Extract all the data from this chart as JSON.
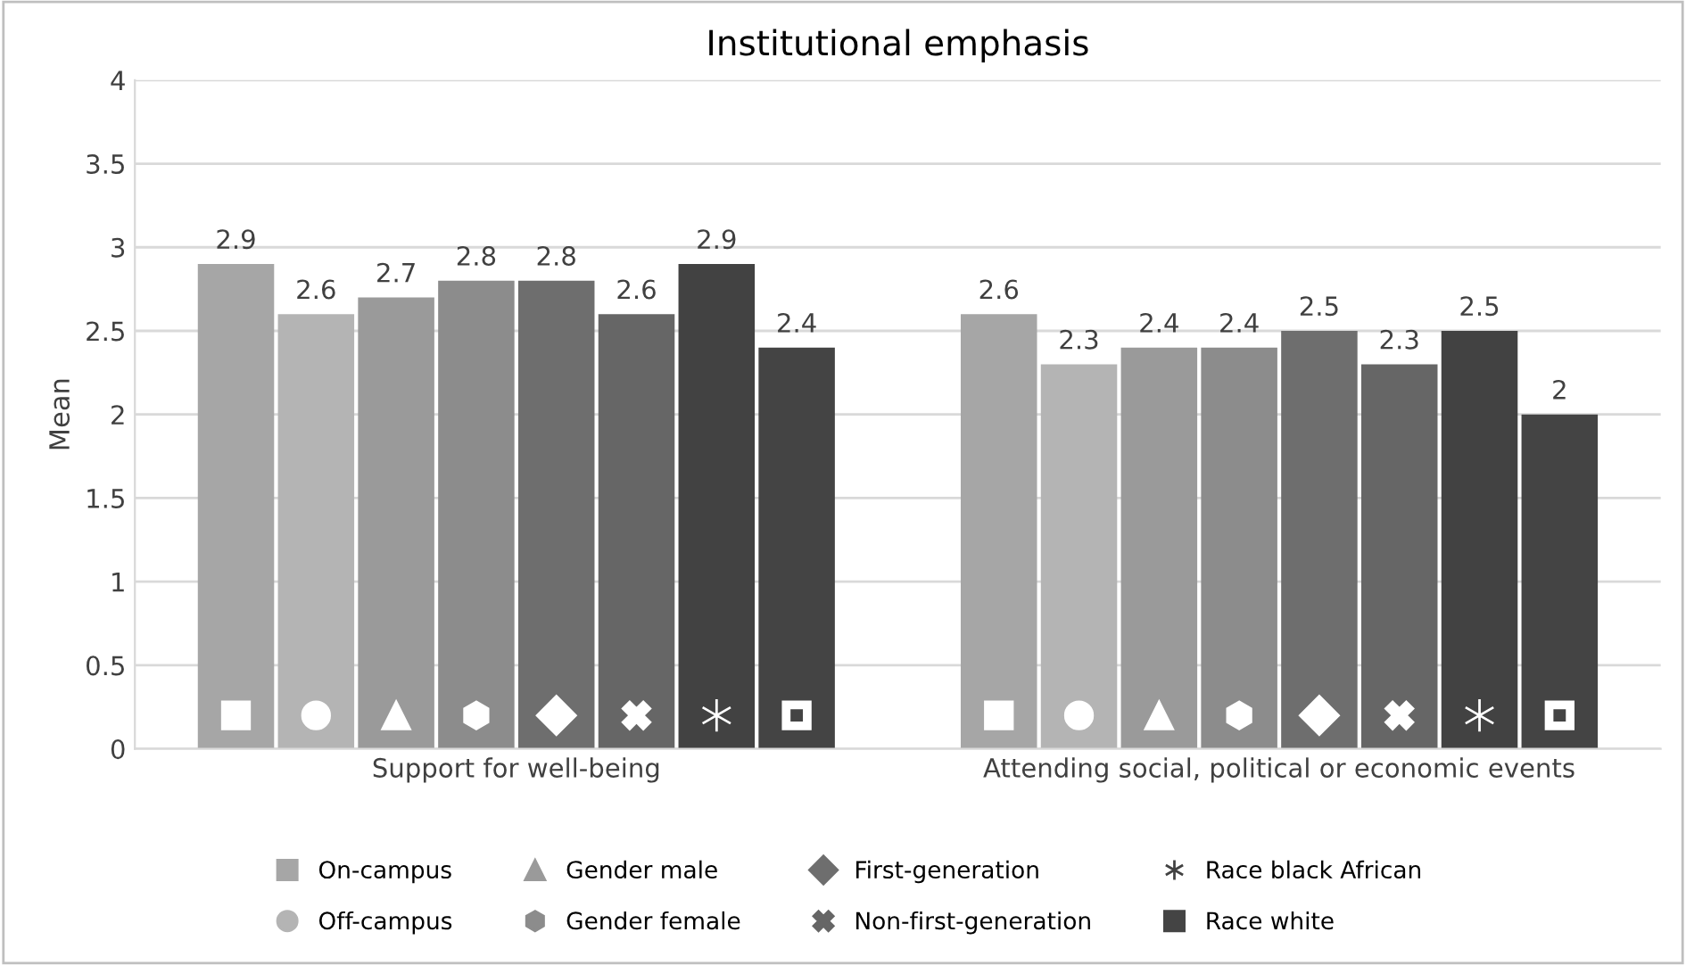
{
  "chart_data": {
    "type": "bar",
    "title": "Institutional emphasis",
    "ylabel": "Mean",
    "categories": [
      "Support for well-being",
      "Attending social, political or economic events"
    ],
    "series": [
      {
        "name": "On-campus",
        "color": "#a6a6a6",
        "values": [
          2.9,
          2.6
        ]
      },
      {
        "name": "Off-campus",
        "color": "#b4b4b4",
        "values": [
          2.6,
          2.3
        ]
      },
      {
        "name": "Gender male",
        "color": "#9a9a9a",
        "values": [
          2.7,
          2.4
        ]
      },
      {
        "name": "Gender female",
        "color": "#8c8c8c",
        "values": [
          2.8,
          2.4
        ]
      },
      {
        "name": "First-generation",
        "color": "#6e6e6e",
        "values": [
          2.8,
          2.5
        ]
      },
      {
        "name": "Non-first-generation",
        "color": "#666666",
        "values": [
          2.6,
          2.3
        ]
      },
      {
        "name": "Race black African",
        "color": "#424242",
        "values": [
          2.9,
          2.5
        ]
      },
      {
        "name": "Race white",
        "color": "#444444",
        "values": [
          2.4,
          2
        ]
      }
    ],
    "ylim": [
      0,
      4
    ],
    "yticks": [
      0,
      0.5,
      1,
      1.5,
      2,
      2.5,
      3,
      3.5,
      4
    ],
    "grid": "y",
    "legend": "bottom",
    "data_labels": true
  }
}
